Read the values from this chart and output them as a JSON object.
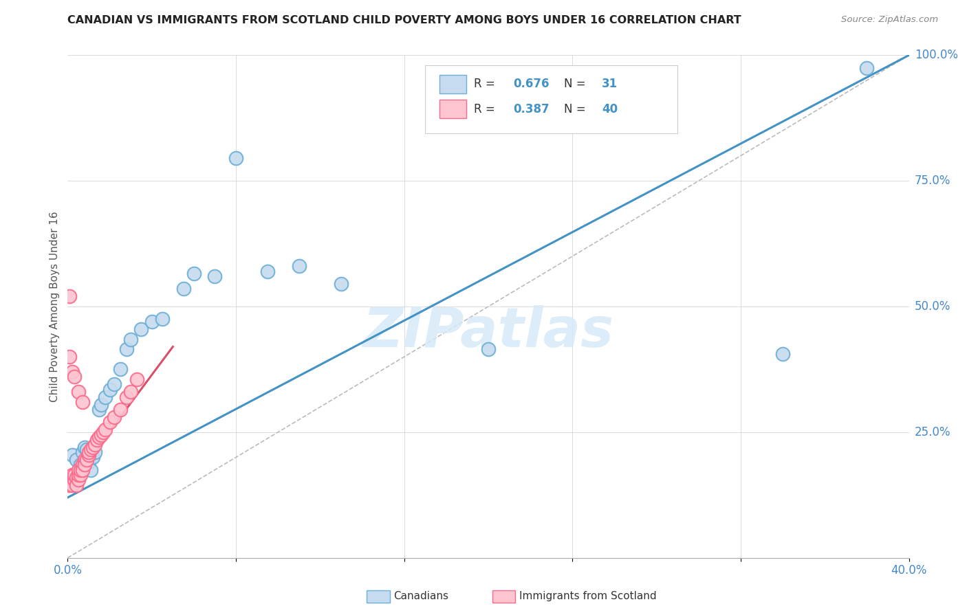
{
  "title": "CANADIAN VS IMMIGRANTS FROM SCOTLAND CHILD POVERTY AMONG BOYS UNDER 16 CORRELATION CHART",
  "source": "Source: ZipAtlas.com",
  "ylabel": "Child Poverty Among Boys Under 16",
  "xlim": [
    0.0,
    0.4
  ],
  "ylim": [
    0.0,
    1.0
  ],
  "xticks": [
    0.0,
    0.08,
    0.16,
    0.24,
    0.32,
    0.4
  ],
  "xticklabels": [
    "0.0%",
    "",
    "",
    "",
    "",
    "40.0%"
  ],
  "yticks_right": [
    0.25,
    0.5,
    0.75,
    1.0
  ],
  "yticklabels_right": [
    "25.0%",
    "50.0%",
    "75.0%",
    "100.0%"
  ],
  "canadians_x": [
    0.002,
    0.004,
    0.006,
    0.007,
    0.008,
    0.009,
    0.01,
    0.011,
    0.012,
    0.013,
    0.015,
    0.016,
    0.018,
    0.02,
    0.022,
    0.025,
    0.028,
    0.03,
    0.035,
    0.04,
    0.045,
    0.055,
    0.06,
    0.07,
    0.08,
    0.095,
    0.11,
    0.13,
    0.2,
    0.34,
    0.38
  ],
  "canadians_y": [
    0.205,
    0.195,
    0.185,
    0.21,
    0.22,
    0.215,
    0.19,
    0.175,
    0.2,
    0.21,
    0.295,
    0.305,
    0.32,
    0.335,
    0.345,
    0.375,
    0.415,
    0.435,
    0.455,
    0.47,
    0.475,
    0.535,
    0.565,
    0.56,
    0.795,
    0.57,
    0.58,
    0.545,
    0.415,
    0.405,
    0.975
  ],
  "scotland_x": [
    0.001,
    0.001,
    0.002,
    0.002,
    0.003,
    0.003,
    0.004,
    0.004,
    0.005,
    0.005,
    0.005,
    0.006,
    0.006,
    0.007,
    0.007,
    0.008,
    0.008,
    0.009,
    0.01,
    0.01,
    0.011,
    0.012,
    0.013,
    0.014,
    0.015,
    0.016,
    0.017,
    0.018,
    0.02,
    0.022,
    0.025,
    0.028,
    0.03,
    0.033,
    0.001,
    0.001,
    0.002,
    0.003,
    0.005,
    0.007
  ],
  "scotland_y": [
    0.155,
    0.145,
    0.165,
    0.145,
    0.155,
    0.165,
    0.16,
    0.145,
    0.155,
    0.165,
    0.175,
    0.165,
    0.175,
    0.185,
    0.175,
    0.195,
    0.185,
    0.195,
    0.205,
    0.21,
    0.215,
    0.22,
    0.225,
    0.235,
    0.24,
    0.245,
    0.25,
    0.255,
    0.27,
    0.28,
    0.295,
    0.32,
    0.33,
    0.355,
    0.52,
    0.4,
    0.37,
    0.36,
    0.33,
    0.31
  ],
  "canadian_color": "#6baed6",
  "canadian_face": "#c6dbef",
  "scotland_color": "#fb6a8a",
  "scotland_face": "#fcc5d0",
  "trend_canadian_color": "#4292c6",
  "trend_scotland_color": "#d94f6a",
  "r_canadian": 0.676,
  "n_canadian": 31,
  "r_scotland": 0.387,
  "n_scotland": 40,
  "watermark": "ZIPatlas",
  "background_color": "#ffffff",
  "grid_color": "#cccccc",
  "canadian_trend_x0": 0.0,
  "canadian_trend_y0": 0.12,
  "canadian_trend_x1": 0.4,
  "canadian_trend_y1": 1.0,
  "scotland_trend_x0": 0.0,
  "scotland_trend_y0": 0.14,
  "scotland_trend_x1": 0.05,
  "scotland_trend_y1": 0.42
}
